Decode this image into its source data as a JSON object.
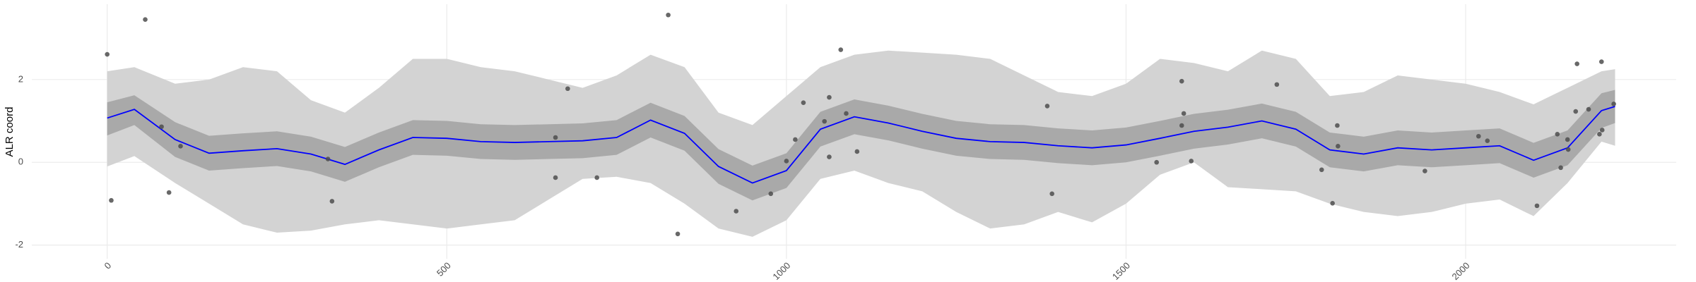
{
  "chart_data": {
    "type": "scatter",
    "y_label": "ALR coord",
    "xlim": [
      -111,
      2310
    ],
    "ylim": [
      -2.33,
      3.82
    ],
    "xticks": [
      0,
      500,
      1000,
      1500,
      2000
    ],
    "yticks": [
      -2,
      0,
      2
    ],
    "grid": true,
    "points": {
      "color": "#4d4d4d",
      "x": [
        0,
        6,
        56,
        80,
        91,
        108,
        325,
        331,
        660,
        660,
        678,
        721,
        826,
        840,
        926,
        977,
        1000,
        1013,
        1025,
        1056,
        1063,
        1063,
        1080,
        1088,
        1104,
        1384,
        1391,
        1545,
        1582,
        1582,
        1585,
        1596,
        1722,
        1788,
        1804,
        1811,
        1812,
        1940,
        2019,
        2032,
        2105,
        2135,
        2140,
        2150,
        2151,
        2162,
        2164,
        2181,
        2197,
        2200,
        2201,
        2218
      ],
      "values": [
        2.61,
        -0.92,
        3.45,
        0.86,
        -0.73,
        0.39,
        0.08,
        -0.94,
        0.6,
        -0.37,
        1.78,
        -0.37,
        3.56,
        -1.73,
        -1.18,
        -0.76,
        0.03,
        0.55,
        1.44,
        0.99,
        1.57,
        0.13,
        2.72,
        1.18,
        0.26,
        1.36,
        -0.76,
        0.0,
        1.96,
        0.89,
        1.18,
        0.03,
        1.88,
        -0.18,
        -0.99,
        0.89,
        0.39,
        -0.21,
        0.63,
        0.52,
        -1.05,
        0.68,
        -0.13,
        0.55,
        0.31,
        1.23,
        2.38,
        1.28,
        0.68,
        2.43,
        0.78,
        1.41
      ]
    },
    "smooth": {
      "color": "#0000ff",
      "x": [
        0,
        40,
        100,
        150,
        200,
        250,
        300,
        350,
        400,
        450,
        500,
        550,
        600,
        650,
        700,
        750,
        800,
        850,
        900,
        950,
        1000,
        1050,
        1100,
        1150,
        1200,
        1250,
        1300,
        1350,
        1400,
        1450,
        1500,
        1550,
        1600,
        1650,
        1700,
        1750,
        1800,
        1850,
        1900,
        1950,
        2000,
        2050,
        2100,
        2150,
        2200,
        2220
      ],
      "values": [
        1.07,
        1.28,
        0.55,
        0.22,
        0.28,
        0.33,
        0.2,
        -0.05,
        0.3,
        0.6,
        0.58,
        0.5,
        0.48,
        0.5,
        0.52,
        0.6,
        1.02,
        0.7,
        -0.1,
        -0.5,
        -0.2,
        0.8,
        1.1,
        0.95,
        0.75,
        0.58,
        0.5,
        0.48,
        0.4,
        0.35,
        0.42,
        0.58,
        0.75,
        0.85,
        1.0,
        0.8,
        0.3,
        0.2,
        0.35,
        0.3,
        0.35,
        0.4,
        0.05,
        0.35,
        1.25,
        1.35
      ]
    },
    "bands": [
      {
        "color": "#d3d3d3",
        "upper": [
          2.2,
          2.3,
          1.9,
          2.0,
          2.3,
          2.2,
          1.5,
          1.2,
          1.8,
          2.5,
          2.5,
          2.3,
          2.2,
          2.0,
          1.8,
          2.1,
          2.6,
          2.3,
          1.2,
          0.9,
          1.6,
          2.3,
          2.6,
          2.7,
          2.65,
          2.6,
          2.5,
          2.1,
          1.7,
          1.6,
          1.9,
          2.5,
          2.4,
          2.2,
          2.7,
          2.5,
          1.6,
          1.7,
          2.1,
          2.0,
          1.9,
          1.7,
          1.4,
          1.8,
          2.2,
          2.25
        ],
        "lower": [
          -0.1,
          0.15,
          -0.5,
          -1.0,
          -1.5,
          -1.7,
          -1.65,
          -1.5,
          -1.4,
          -1.5,
          -1.6,
          -1.5,
          -1.4,
          -0.9,
          -0.4,
          -0.35,
          -0.5,
          -1.0,
          -1.6,
          -1.8,
          -1.4,
          -0.4,
          -0.2,
          -0.5,
          -0.7,
          -1.2,
          -1.6,
          -1.5,
          -1.2,
          -1.45,
          -1.0,
          -0.3,
          0.0,
          -0.6,
          -0.65,
          -0.7,
          -1.0,
          -1.2,
          -1.3,
          -1.2,
          -1.0,
          -0.9,
          -1.3,
          -0.5,
          0.5,
          0.4
        ]
      },
      {
        "color": "#a9a9a9",
        "upper": [
          1.45,
          1.62,
          0.97,
          0.64,
          0.7,
          0.75,
          0.62,
          0.37,
          0.72,
          1.02,
          1.0,
          0.92,
          0.9,
          0.92,
          0.94,
          1.02,
          1.44,
          1.12,
          0.32,
          -0.08,
          0.22,
          1.22,
          1.52,
          1.37,
          1.17,
          1.0,
          0.92,
          0.9,
          0.82,
          0.77,
          0.84,
          1.0,
          1.17,
          1.27,
          1.42,
          1.22,
          0.72,
          0.62,
          0.77,
          0.72,
          0.77,
          0.82,
          0.47,
          0.77,
          1.67,
          1.75
        ],
        "lower": [
          0.65,
          0.9,
          0.13,
          -0.2,
          -0.14,
          -0.09,
          -0.22,
          -0.47,
          -0.12,
          0.18,
          0.16,
          0.08,
          0.06,
          0.08,
          0.1,
          0.18,
          0.6,
          0.28,
          -0.52,
          -0.92,
          -0.62,
          0.38,
          0.68,
          0.53,
          0.33,
          0.16,
          0.08,
          0.06,
          -0.02,
          -0.07,
          0.0,
          0.16,
          0.33,
          0.43,
          0.58,
          0.38,
          -0.12,
          -0.22,
          -0.07,
          -0.12,
          -0.07,
          -0.02,
          -0.37,
          -0.07,
          0.83,
          0.95
        ]
      }
    ]
  }
}
